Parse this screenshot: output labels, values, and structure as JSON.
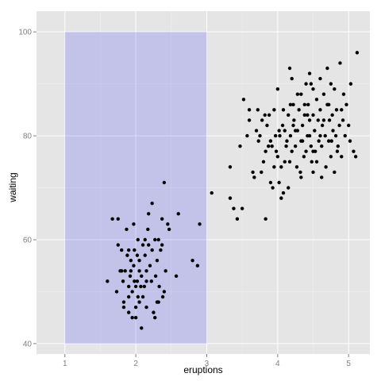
{
  "chart_data": {
    "type": "scatter",
    "title": "",
    "xlabel": "eruptions",
    "ylabel": "waiting",
    "xlim": [
      0.6,
      5.3
    ],
    "ylim": [
      38,
      104
    ],
    "x_ticks": [
      1,
      2,
      3,
      4,
      5
    ],
    "x_tick_labels": [
      "1",
      "2",
      "3",
      "4",
      "5"
    ],
    "y_ticks": [
      40,
      60,
      80,
      100
    ],
    "y_tick_labels": [
      "40",
      "60",
      "80",
      "100"
    ],
    "grid": true,
    "legend": "none",
    "colors": {
      "panel_background": "#e5e5e5",
      "grid_major": "#ffffff",
      "grid_minor": "#f2f2f2",
      "points": "#000000",
      "highlight_fill": "#0000ff",
      "highlight_opacity": 0.15
    },
    "highlight_rect": {
      "xmin": 1,
      "xmax": 3,
      "ymin": 40,
      "ymax": 100
    },
    "series": [
      {
        "points": [
          [
            1.6,
            52
          ],
          [
            1.67,
            64
          ],
          [
            1.75,
            59
          ],
          [
            1.78,
            54
          ],
          [
            1.8,
            58
          ],
          [
            1.8,
            54
          ],
          [
            1.82,
            52
          ],
          [
            1.83,
            48
          ],
          [
            1.83,
            47
          ],
          [
            1.85,
            54
          ],
          [
            1.87,
            62
          ],
          [
            1.88,
            57
          ],
          [
            1.9,
            46
          ],
          [
            1.9,
            49
          ],
          [
            1.9,
            51
          ],
          [
            1.92,
            53
          ],
          [
            1.93,
            56
          ],
          [
            1.93,
            54
          ],
          [
            1.95,
            45
          ],
          [
            1.95,
            50
          ],
          [
            1.97,
            55
          ],
          [
            1.97,
            63
          ],
          [
            1.98,
            58
          ],
          [
            2.0,
            51
          ],
          [
            2.0,
            47
          ],
          [
            2.0,
            45
          ],
          [
            2.02,
            52
          ],
          [
            2.02,
            57
          ],
          [
            2.03,
            60
          ],
          [
            2.03,
            49
          ],
          [
            2.05,
            54
          ],
          [
            2.05,
            56
          ],
          [
            2.07,
            51
          ],
          [
            2.08,
            53
          ],
          [
            2.08,
            43
          ],
          [
            2.1,
            49
          ],
          [
            2.1,
            59
          ],
          [
            2.12,
            51
          ],
          [
            2.13,
            60
          ],
          [
            2.13,
            57
          ],
          [
            2.15,
            47
          ],
          [
            2.15,
            54
          ],
          [
            2.17,
            62
          ],
          [
            2.18,
            65
          ],
          [
            2.2,
            55
          ],
          [
            2.22,
            52
          ],
          [
            2.23,
            58
          ],
          [
            2.23,
            67
          ],
          [
            2.25,
            46
          ],
          [
            2.27,
            45
          ],
          [
            2.27,
            60
          ],
          [
            2.28,
            53
          ],
          [
            2.3,
            56
          ],
          [
            2.32,
            60
          ],
          [
            2.32,
            48
          ],
          [
            2.33,
            51
          ],
          [
            2.35,
            58
          ],
          [
            2.37,
            59
          ],
          [
            2.37,
            64
          ],
          [
            2.38,
            49
          ],
          [
            2.4,
            50
          ],
          [
            2.4,
            71
          ],
          [
            2.42,
            54
          ],
          [
            2.45,
            63
          ],
          [
            2.47,
            62
          ],
          [
            2.57,
            53
          ],
          [
            2.6,
            65
          ],
          [
            2.8,
            56
          ],
          [
            2.87,
            55
          ],
          [
            2.9,
            63
          ],
          [
            1.73,
            50
          ],
          [
            1.75,
            64
          ],
          [
            1.98,
            52
          ],
          [
            2.05,
            48
          ],
          [
            2.15,
            52
          ],
          [
            2.3,
            48
          ],
          [
            2.18,
            59
          ],
          [
            1.9,
            58
          ],
          [
            3.07,
            69
          ],
          [
            3.33,
            74
          ],
          [
            3.33,
            68
          ],
          [
            3.38,
            66
          ],
          [
            3.43,
            64
          ],
          [
            3.47,
            78
          ],
          [
            3.5,
            66
          ],
          [
            3.52,
            87
          ],
          [
            3.57,
            80
          ],
          [
            3.6,
            83
          ],
          [
            3.6,
            85
          ],
          [
            3.65,
            73
          ],
          [
            3.67,
            72
          ],
          [
            3.7,
            81
          ],
          [
            3.73,
            79
          ],
          [
            3.75,
            80
          ],
          [
            3.77,
            73
          ],
          [
            3.78,
            83
          ],
          [
            3.8,
            75
          ],
          [
            3.82,
            84
          ],
          [
            3.83,
            64
          ],
          [
            3.83,
            77
          ],
          [
            3.85,
            82
          ],
          [
            3.87,
            78
          ],
          [
            3.88,
            84
          ],
          [
            3.9,
            71
          ],
          [
            3.9,
            79
          ],
          [
            3.92,
            78
          ],
          [
            3.93,
            70
          ],
          [
            3.95,
            85
          ],
          [
            3.97,
            80
          ],
          [
            3.98,
            77
          ],
          [
            4.0,
            76
          ],
          [
            4.0,
            89
          ],
          [
            4.02,
            71
          ],
          [
            4.03,
            80
          ],
          [
            4.05,
            74
          ],
          [
            4.07,
            82
          ],
          [
            4.08,
            85
          ],
          [
            4.08,
            69
          ],
          [
            4.1,
            81
          ],
          [
            4.12,
            78
          ],
          [
            4.13,
            79
          ],
          [
            4.15,
            84
          ],
          [
            4.17,
            93
          ],
          [
            4.17,
            75
          ],
          [
            4.18,
            80
          ],
          [
            4.2,
            91
          ],
          [
            4.2,
            77
          ],
          [
            4.22,
            86
          ],
          [
            4.23,
            83
          ],
          [
            4.25,
            78
          ],
          [
            4.27,
            74
          ],
          [
            4.28,
            81
          ],
          [
            4.3,
            85
          ],
          [
            4.32,
            73
          ],
          [
            4.33,
            79
          ],
          [
            4.33,
            88
          ],
          [
            4.35,
            82
          ],
          [
            4.37,
            76
          ],
          [
            4.38,
            84
          ],
          [
            4.4,
            90
          ],
          [
            4.4,
            77
          ],
          [
            4.42,
            80
          ],
          [
            4.43,
            86
          ],
          [
            4.45,
            83
          ],
          [
            4.45,
            92
          ],
          [
            4.47,
            78
          ],
          [
            4.48,
            75
          ],
          [
            4.5,
            84
          ],
          [
            4.5,
            89
          ],
          [
            4.52,
            81
          ],
          [
            4.53,
            77
          ],
          [
            4.55,
            87
          ],
          [
            4.57,
            83
          ],
          [
            4.58,
            79
          ],
          [
            4.6,
            85
          ],
          [
            4.6,
            91
          ],
          [
            4.62,
            78
          ],
          [
            4.63,
            82
          ],
          [
            4.65,
            88
          ],
          [
            4.67,
            80
          ],
          [
            4.68,
            74
          ],
          [
            4.7,
            86
          ],
          [
            4.7,
            93
          ],
          [
            4.72,
            79
          ],
          [
            4.73,
            83
          ],
          [
            4.75,
            90
          ],
          [
            4.75,
            76
          ],
          [
            4.77,
            84
          ],
          [
            4.78,
            81
          ],
          [
            4.8,
            89
          ],
          [
            4.8,
            73
          ],
          [
            4.82,
            80
          ],
          [
            4.83,
            85
          ],
          [
            4.85,
            78
          ],
          [
            4.87,
            82
          ],
          [
            4.88,
            94
          ],
          [
            4.9,
            76
          ],
          [
            4.92,
            83
          ],
          [
            4.93,
            88
          ],
          [
            4.95,
            80
          ],
          [
            4.97,
            86
          ],
          [
            5.0,
            82
          ],
          [
            5.02,
            79
          ],
          [
            5.03,
            90
          ],
          [
            5.07,
            77
          ],
          [
            5.1,
            76
          ],
          [
            5.12,
            96
          ],
          [
            4.25,
            81
          ],
          [
            4.45,
            80
          ],
          [
            4.65,
            83
          ],
          [
            4.5,
            73
          ],
          [
            4.33,
            72
          ],
          [
            4.1,
            75
          ],
          [
            3.95,
            74
          ],
          [
            4.55,
            75
          ],
          [
            4.9,
            85
          ],
          [
            4.35,
            79
          ],
          [
            4.15,
            70
          ],
          [
            4.05,
            68
          ],
          [
            4.6,
            80
          ],
          [
            4.38,
            86
          ],
          [
            4.72,
            86
          ],
          [
            4.42,
            84
          ],
          [
            4.22,
            82
          ],
          [
            4.5,
            77
          ],
          [
            4.28,
            88
          ],
          [
            4.62,
            72
          ],
          [
            4.84,
            77
          ],
          [
            4.18,
            86
          ],
          [
            4.47,
            90
          ],
          [
            4.76,
            79
          ],
          [
            4.02,
            81
          ],
          [
            3.72,
            85
          ]
        ]
      }
    ]
  }
}
